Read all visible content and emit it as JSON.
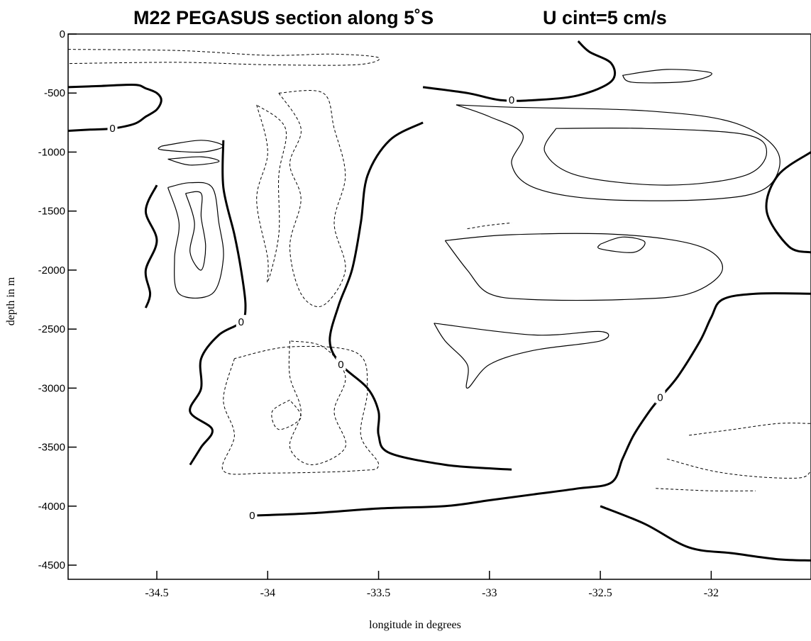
{
  "chart_data": {
    "type": "contour",
    "title": "M22 PEGASUS section along 5˚S",
    "subtitle": "U cint=5 cm/s",
    "xlabel": "longitude in degrees",
    "ylabel": "depth in m",
    "xlim": [
      -34.9,
      -31.55
    ],
    "ylim": [
      -4620,
      0
    ],
    "x_ticks": [
      "-34.5",
      "-34",
      "-33.5",
      "-33",
      "-32.5",
      "-32"
    ],
    "x_tick_values": [
      -34.5,
      -34,
      -33.5,
      -33,
      -32.5,
      -32
    ],
    "y_ticks": [
      "0",
      "-500",
      "-1000",
      "-1500",
      "-2000",
      "-2500",
      "-3000",
      "-3500",
      "-4000",
      "-4500"
    ],
    "y_tick_values": [
      0,
      -500,
      -1000,
      -1500,
      -2000,
      -2500,
      -3000,
      -3500,
      -4000,
      -4500
    ],
    "contour_interval_cm_s": 5,
    "zero_contour_label": "0",
    "zero_label_points": [
      {
        "lon": -34.7,
        "depth": -800
      },
      {
        "lon": -32.9,
        "depth": -560
      },
      {
        "lon": -34.12,
        "depth": -2440
      },
      {
        "lon": -33.67,
        "depth": -2800
      },
      {
        "lon": -32.23,
        "depth": -3080
      },
      {
        "lon": -34.07,
        "depth": -4080
      }
    ],
    "zero_contours": [
      [
        [
          -34.9,
          -820
        ],
        [
          -34.8,
          -810
        ],
        [
          -34.7,
          -800
        ],
        [
          -34.6,
          -760
        ],
        [
          -34.55,
          -700
        ],
        [
          -34.5,
          -640
        ],
        [
          -34.48,
          -560
        ],
        [
          -34.5,
          -500
        ],
        [
          -34.55,
          -460
        ],
        [
          -34.6,
          -430
        ],
        [
          -34.75,
          -440
        ],
        [
          -34.9,
          -450
        ]
      ],
      [
        [
          -34.5,
          -1280
        ],
        [
          -34.55,
          -1500
        ],
        [
          -34.5,
          -1750
        ],
        [
          -34.55,
          -2000
        ],
        [
          -34.53,
          -2200
        ],
        [
          -34.55,
          -2320
        ]
      ],
      [
        [
          -33.3,
          -450
        ],
        [
          -33.1,
          -500
        ],
        [
          -32.95,
          -560
        ],
        [
          -32.8,
          -560
        ],
        [
          -32.6,
          -520
        ],
        [
          -32.45,
          -400
        ],
        [
          -32.45,
          -250
        ],
        [
          -32.55,
          -150
        ],
        [
          -32.6,
          -60
        ]
      ],
      [
        [
          -34.2,
          -900
        ],
        [
          -34.2,
          -1300
        ],
        [
          -34.15,
          -1700
        ],
        [
          -34.12,
          -2000
        ],
        [
          -34.1,
          -2300
        ],
        [
          -34.12,
          -2440
        ],
        [
          -34.22,
          -2550
        ],
        [
          -34.3,
          -2750
        ],
        [
          -34.3,
          -3000
        ],
        [
          -34.35,
          -3200
        ],
        [
          -34.25,
          -3350
        ],
        [
          -34.3,
          -3500
        ],
        [
          -34.35,
          -3650
        ]
      ],
      [
        [
          -33.3,
          -750
        ],
        [
          -33.45,
          -900
        ],
        [
          -33.55,
          -1200
        ],
        [
          -33.58,
          -1600
        ],
        [
          -33.62,
          -2000
        ],
        [
          -33.68,
          -2300
        ],
        [
          -33.72,
          -2600
        ],
        [
          -33.67,
          -2800
        ],
        [
          -33.55,
          -3000
        ],
        [
          -33.5,
          -3200
        ],
        [
          -33.5,
          -3400
        ],
        [
          -33.45,
          -3550
        ],
        [
          -33.2,
          -3650
        ],
        [
          -33,
          -3680
        ],
        [
          -32.9,
          -3690
        ]
      ],
      [
        [
          -34.07,
          -4080
        ],
        [
          -33.8,
          -4060
        ],
        [
          -33.5,
          -4020
        ],
        [
          -33.2,
          -4000
        ],
        [
          -33,
          -3950
        ],
        [
          -32.8,
          -3900
        ],
        [
          -32.6,
          -3850
        ],
        [
          -32.45,
          -3800
        ],
        [
          -32.4,
          -3600
        ],
        [
          -32.35,
          -3400
        ],
        [
          -32.28,
          -3200
        ],
        [
          -32.23,
          -3080
        ],
        [
          -32.15,
          -2900
        ],
        [
          -32.05,
          -2600
        ],
        [
          -32,
          -2400
        ],
        [
          -31.95,
          -2250
        ],
        [
          -31.8,
          -2200
        ],
        [
          -31.55,
          -2200
        ]
      ],
      [
        [
          -32.5,
          -4000
        ],
        [
          -32.3,
          -4150
        ],
        [
          -32.1,
          -4350
        ],
        [
          -31.9,
          -4400
        ],
        [
          -31.7,
          -4450
        ],
        [
          -31.55,
          -4460
        ]
      ],
      [
        [
          -31.55,
          -1000
        ],
        [
          -31.7,
          -1200
        ],
        [
          -31.75,
          -1500
        ],
        [
          -31.65,
          -1800
        ],
        [
          -31.55,
          -1850
        ]
      ]
    ],
    "positive_contours": [
      [
        [
          -33.15,
          -600
        ],
        [
          -33,
          -700
        ],
        [
          -32.85,
          -850
        ],
        [
          -32.9,
          -1100
        ],
        [
          -32.8,
          -1300
        ],
        [
          -32.5,
          -1400
        ],
        [
          -32,
          -1400
        ],
        [
          -31.75,
          -1300
        ],
        [
          -31.7,
          -1000
        ],
        [
          -31.9,
          -750
        ],
        [
          -32.3,
          -650
        ],
        [
          -32.9,
          -620
        ],
        [
          -33.15,
          -600
        ]
      ],
      [
        [
          -32.7,
          -800
        ],
        [
          -32.75,
          -1000
        ],
        [
          -32.6,
          -1200
        ],
        [
          -32.2,
          -1280
        ],
        [
          -31.85,
          -1200
        ],
        [
          -31.75,
          -1000
        ],
        [
          -31.85,
          -850
        ],
        [
          -32.3,
          -800
        ],
        [
          -32.7,
          -800
        ]
      ],
      [
        [
          -33.2,
          -1750
        ],
        [
          -33.1,
          -2000
        ],
        [
          -33,
          -2200
        ],
        [
          -32.8,
          -2250
        ],
        [
          -32.4,
          -2250
        ],
        [
          -32.1,
          -2200
        ],
        [
          -31.95,
          -2000
        ],
        [
          -32.05,
          -1800
        ],
        [
          -32.4,
          -1700
        ],
        [
          -32.9,
          -1700
        ],
        [
          -33.2,
          -1750
        ]
      ],
      [
        [
          -33.25,
          -2450
        ],
        [
          -33.2,
          -2600
        ],
        [
          -33.1,
          -2800
        ],
        [
          -33.1,
          -3000
        ],
        [
          -33,
          -2800
        ],
        [
          -32.8,
          -2680
        ],
        [
          -32.5,
          -2600
        ],
        [
          -32.5,
          -2520
        ],
        [
          -32.8,
          -2550
        ],
        [
          -33.25,
          -2450
        ]
      ],
      [
        [
          -34.45,
          -1300
        ],
        [
          -34.4,
          -1600
        ],
        [
          -34.42,
          -1900
        ],
        [
          -34.4,
          -2200
        ],
        [
          -34.25,
          -2200
        ],
        [
          -34.2,
          -1900
        ],
        [
          -34.22,
          -1600
        ],
        [
          -34.25,
          -1300
        ],
        [
          -34.35,
          -1260
        ],
        [
          -34.45,
          -1300
        ]
      ],
      [
        [
          -34.37,
          -1350
        ],
        [
          -34.33,
          -1600
        ],
        [
          -34.35,
          -1850
        ],
        [
          -34.3,
          -2000
        ],
        [
          -34.28,
          -1800
        ],
        [
          -34.3,
          -1550
        ],
        [
          -34.3,
          -1350
        ],
        [
          -34.37,
          -1350
        ]
      ],
      [
        [
          -34.48,
          -950
        ],
        [
          -34.3,
          -900
        ],
        [
          -34.2,
          -950
        ],
        [
          -34.3,
          -1000
        ],
        [
          -34.48,
          -980
        ],
        [
          -34.48,
          -950
        ]
      ],
      [
        [
          -34.45,
          -1060
        ],
        [
          -34.3,
          -1040
        ],
        [
          -34.22,
          -1080
        ],
        [
          -34.35,
          -1110
        ],
        [
          -34.45,
          -1060
        ]
      ],
      [
        [
          -32.5,
          -1780
        ],
        [
          -32.4,
          -1720
        ],
        [
          -32.3,
          -1760
        ],
        [
          -32.35,
          -1850
        ],
        [
          -32.5,
          -1820
        ],
        [
          -32.5,
          -1780
        ]
      ],
      [
        [
          -32.4,
          -350
        ],
        [
          -32.2,
          -300
        ],
        [
          -32,
          -330
        ],
        [
          -32.1,
          -400
        ],
        [
          -32.35,
          -410
        ],
        [
          -32.4,
          -350
        ]
      ]
    ],
    "negative_contours": [
      [
        [
          -33.95,
          -500
        ],
        [
          -33.85,
          -800
        ],
        [
          -33.9,
          -1100
        ],
        [
          -33.85,
          -1400
        ],
        [
          -33.9,
          -1800
        ],
        [
          -33.85,
          -2200
        ],
        [
          -33.75,
          -2300
        ],
        [
          -33.65,
          -2000
        ],
        [
          -33.7,
          -1600
        ],
        [
          -33.65,
          -1200
        ],
        [
          -33.7,
          -800
        ],
        [
          -33.75,
          -500
        ],
        [
          -33.95,
          -500
        ]
      ],
      [
        [
          -34.05,
          -600
        ],
        [
          -34,
          -1000
        ],
        [
          -34.05,
          -1400
        ],
        [
          -34,
          -1900
        ],
        [
          -34,
          -2100
        ],
        [
          -33.95,
          -1700
        ],
        [
          -33.95,
          -1200
        ],
        [
          -33.92,
          -800
        ],
        [
          -34.05,
          -600
        ]
      ],
      [
        [
          -33.9,
          -2600
        ],
        [
          -33.9,
          -2900
        ],
        [
          -33.85,
          -3200
        ],
        [
          -33.9,
          -3500
        ],
        [
          -33.8,
          -3650
        ],
        [
          -33.65,
          -3500
        ],
        [
          -33.7,
          -3200
        ],
        [
          -33.65,
          -2900
        ],
        [
          -33.75,
          -2650
        ],
        [
          -33.9,
          -2600
        ]
      ],
      [
        [
          -34.15,
          -2750
        ],
        [
          -34.2,
          -3100
        ],
        [
          -34.15,
          -3400
        ],
        [
          -34.2,
          -3700
        ],
        [
          -34,
          -3720
        ],
        [
          -33.6,
          -3700
        ],
        [
          -33.5,
          -3650
        ],
        [
          -33.58,
          -3400
        ],
        [
          -33.55,
          -3000
        ],
        [
          -33.6,
          -2700
        ],
        [
          -33.9,
          -2650
        ],
        [
          -34.15,
          -2750
        ]
      ],
      [
        [
          -33.9,
          -3100
        ],
        [
          -33.98,
          -3200
        ],
        [
          -33.95,
          -3350
        ],
        [
          -33.85,
          -3250
        ],
        [
          -33.9,
          -3100
        ]
      ],
      [
        [
          -34.9,
          -130
        ],
        [
          -34.4,
          -140
        ],
        [
          -34,
          -180
        ],
        [
          -33.7,
          -170
        ],
        [
          -33.5,
          -200
        ],
        [
          -33.6,
          -260
        ],
        [
          -34,
          -260
        ],
        [
          -34.4,
          -240
        ],
        [
          -34.9,
          -250
        ]
      ],
      [
        [
          -32.2,
          -3600
        ],
        [
          -32,
          -3700
        ],
        [
          -31.8,
          -3750
        ],
        [
          -31.6,
          -3760
        ],
        [
          -31.55,
          -3700
        ]
      ],
      [
        [
          -32.1,
          -3400
        ],
        [
          -31.9,
          -3350
        ],
        [
          -31.7,
          -3300
        ],
        [
          -31.55,
          -3300
        ]
      ],
      [
        [
          -32.25,
          -3850
        ],
        [
          -32,
          -3870
        ],
        [
          -31.8,
          -3870
        ]
      ],
      [
        [
          -33.1,
          -1650
        ],
        [
          -33,
          -1620
        ],
        [
          -32.9,
          -1600
        ]
      ]
    ],
    "legend": "none",
    "grid": false
  }
}
